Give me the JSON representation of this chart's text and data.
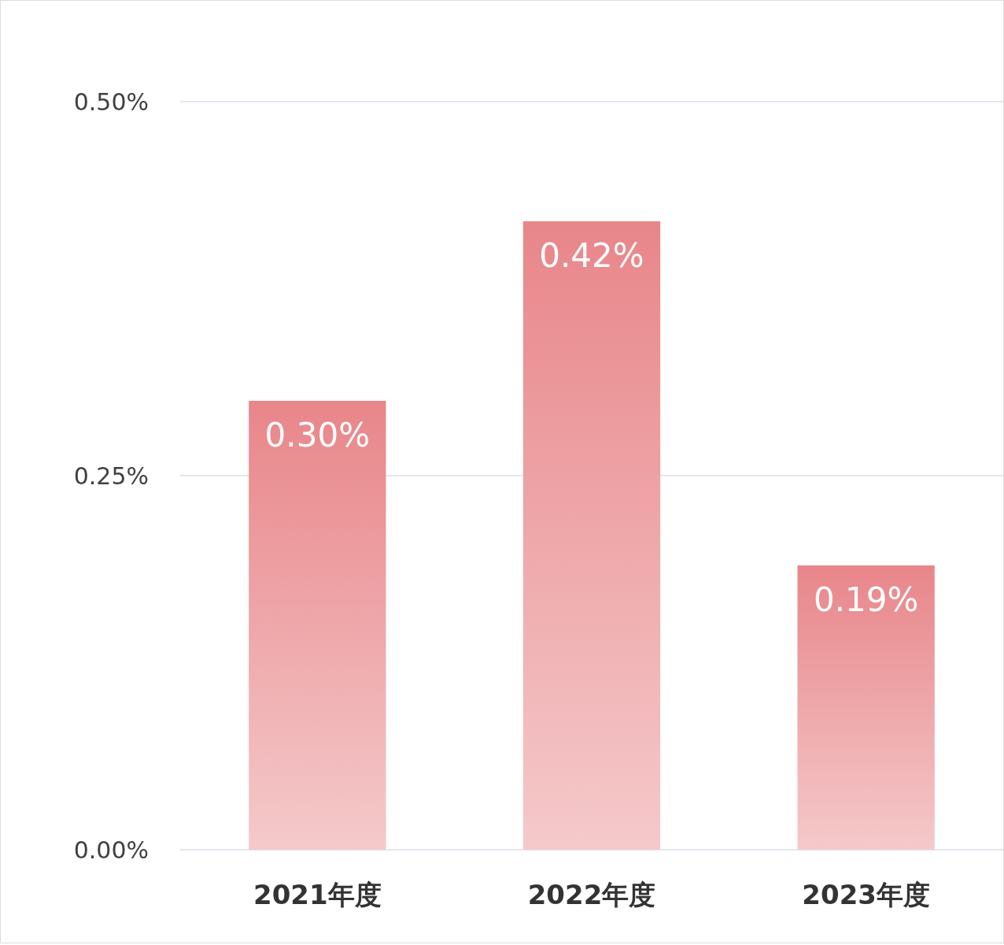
{
  "chart_data": {
    "type": "bar",
    "categories": [
      "2021年度",
      "2022年度",
      "2023年度"
    ],
    "values": [
      0.3,
      0.42,
      0.19
    ],
    "value_labels": [
      "0.30%",
      "0.42%",
      "0.19%"
    ],
    "color": "#e8868a",
    "ylim": [
      0,
      0.5
    ],
    "yticks": [
      {
        "value": 0,
        "label": "0.00%"
      },
      {
        "value": 0.25,
        "label": "0.25%"
      },
      {
        "value": 0.5,
        "label": "0.50%"
      }
    ],
    "grid": "y"
  }
}
